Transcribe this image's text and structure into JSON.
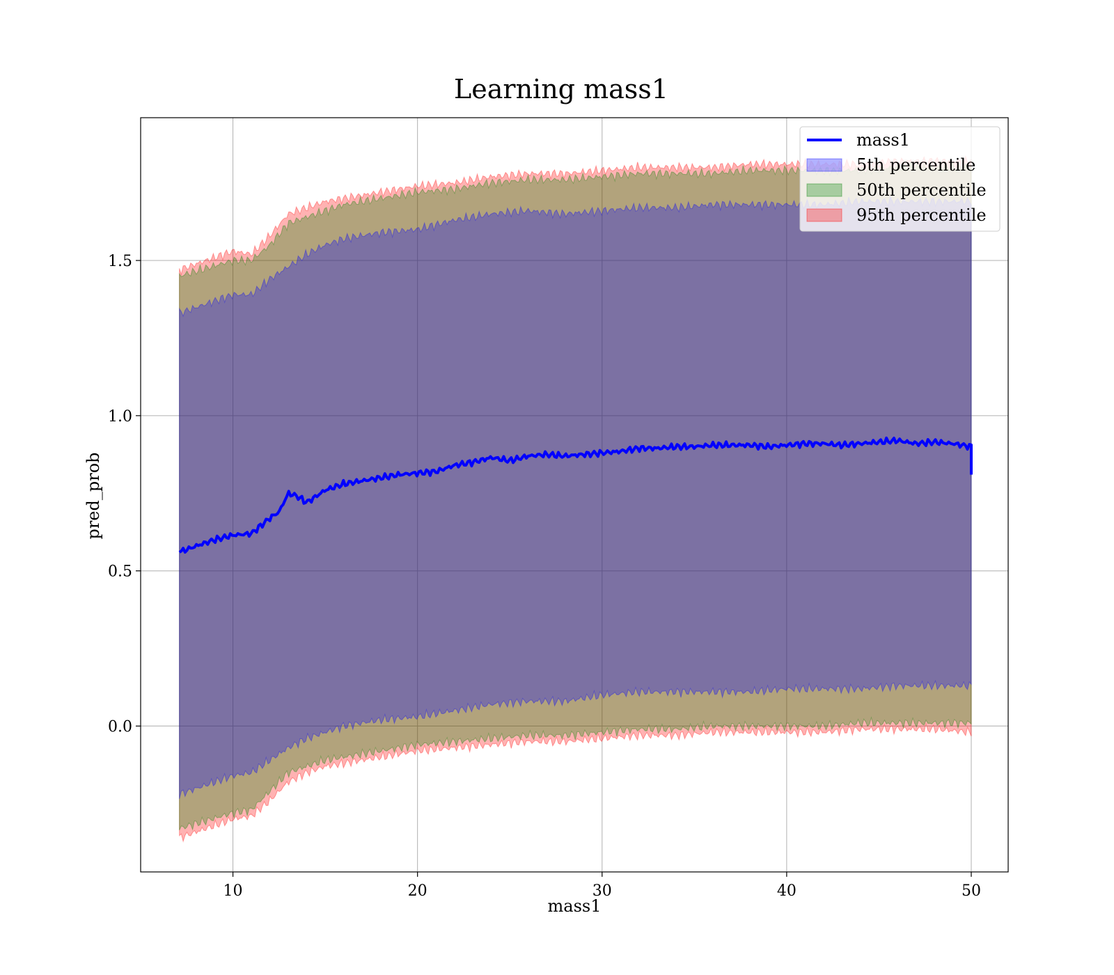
{
  "chart_data": {
    "type": "area",
    "title": "Learning mass1",
    "xlabel": "mass1",
    "ylabel": "pred_prob",
    "xlim": [
      5,
      52
    ],
    "ylim": [
      -0.47,
      1.96
    ],
    "x_ticks": [
      10,
      20,
      30,
      40,
      50
    ],
    "x_tick_labels": [
      "10",
      "20",
      "30",
      "40",
      "50"
    ],
    "y_ticks": [
      0.0,
      0.5,
      1.0,
      1.5
    ],
    "y_tick_labels": [
      "0.0",
      "0.5",
      "1.0",
      "1.5"
    ],
    "grid": true,
    "legend_position": "top-right",
    "colors": {
      "line": "#0000ff",
      "band_5": "#0000ff",
      "band_50": "#008000",
      "band_95": "#ff0000",
      "grid": "#b0b0b0"
    },
    "line_series": {
      "name": "mass1",
      "x": [
        7.1,
        8,
        9,
        10,
        11,
        12,
        12.5,
        13,
        13.5,
        14,
        15,
        16,
        17,
        18,
        19,
        20,
        21,
        22,
        23,
        24,
        25,
        26,
        27,
        28,
        29,
        30,
        31,
        32,
        33,
        34,
        35,
        36,
        37,
        38,
        39,
        40,
        41,
        42,
        43,
        44,
        45,
        46,
        47,
        48,
        49,
        50
      ],
      "values": [
        0.56,
        0.58,
        0.6,
        0.615,
        0.62,
        0.67,
        0.69,
        0.75,
        0.74,
        0.72,
        0.76,
        0.78,
        0.79,
        0.8,
        0.81,
        0.815,
        0.82,
        0.84,
        0.85,
        0.865,
        0.855,
        0.87,
        0.875,
        0.87,
        0.875,
        0.88,
        0.885,
        0.895,
        0.895,
        0.9,
        0.9,
        0.905,
        0.905,
        0.905,
        0.9,
        0.905,
        0.91,
        0.91,
        0.905,
        0.91,
        0.915,
        0.92,
        0.91,
        0.915,
        0.91,
        0.9
      ]
    },
    "bands": [
      {
        "name": "5th percentile",
        "x": [
          7.1,
          10,
          11,
          12,
          13,
          14,
          15,
          16,
          18,
          20,
          22,
          24,
          26,
          28,
          30,
          32,
          34,
          36,
          38,
          40,
          42,
          44,
          46,
          48,
          50
        ],
        "upper": [
          1.33,
          1.39,
          1.39,
          1.44,
          1.48,
          1.52,
          1.55,
          1.57,
          1.59,
          1.6,
          1.63,
          1.65,
          1.66,
          1.65,
          1.66,
          1.67,
          1.67,
          1.68,
          1.68,
          1.68,
          1.68,
          1.69,
          1.69,
          1.69,
          1.69
        ],
        "lower": [
          -0.22,
          -0.16,
          -0.15,
          -0.11,
          -0.07,
          -0.04,
          -0.02,
          0.0,
          0.02,
          0.03,
          0.05,
          0.07,
          0.08,
          0.08,
          0.1,
          0.11,
          0.11,
          0.11,
          0.11,
          0.12,
          0.12,
          0.12,
          0.13,
          0.13,
          0.13
        ]
      },
      {
        "name": "50th percentile",
        "x": [
          7.1,
          10,
          11,
          12,
          13,
          14,
          15,
          16,
          18,
          20,
          22,
          24,
          26,
          28,
          30,
          32,
          34,
          36,
          38,
          40,
          42,
          44,
          46,
          48,
          50
        ],
        "upper": [
          1.45,
          1.5,
          1.5,
          1.55,
          1.62,
          1.64,
          1.66,
          1.68,
          1.7,
          1.72,
          1.73,
          1.75,
          1.76,
          1.76,
          1.77,
          1.78,
          1.78,
          1.78,
          1.79,
          1.79,
          1.79,
          1.79,
          1.8,
          1.8,
          1.8
        ],
        "lower": [
          -0.33,
          -0.28,
          -0.27,
          -0.21,
          -0.15,
          -0.13,
          -0.11,
          -0.1,
          -0.08,
          -0.06,
          -0.05,
          -0.04,
          -0.03,
          -0.03,
          -0.02,
          -0.01,
          -0.01,
          0.0,
          0.0,
          0.0,
          0.0,
          0.01,
          0.01,
          0.01,
          0.01
        ]
      },
      {
        "name": "95th percentile",
        "x": [
          7.1,
          10,
          11,
          12,
          13,
          14,
          15,
          16,
          18,
          20,
          22,
          24,
          26,
          28,
          30,
          32,
          34,
          36,
          38,
          40,
          42,
          44,
          46,
          48,
          50
        ],
        "upper": [
          1.47,
          1.53,
          1.52,
          1.58,
          1.65,
          1.67,
          1.69,
          1.7,
          1.72,
          1.74,
          1.75,
          1.77,
          1.78,
          1.78,
          1.79,
          1.8,
          1.8,
          1.8,
          1.81,
          1.81,
          1.81,
          1.81,
          1.82,
          1.82,
          1.82
        ],
        "lower": [
          -0.36,
          -0.3,
          -0.29,
          -0.24,
          -0.18,
          -0.15,
          -0.13,
          -0.12,
          -0.1,
          -0.08,
          -0.07,
          -0.06,
          -0.05,
          -0.05,
          -0.04,
          -0.03,
          -0.03,
          -0.02,
          -0.02,
          -0.02,
          -0.02,
          -0.01,
          -0.01,
          -0.01,
          -0.02
        ]
      }
    ]
  }
}
